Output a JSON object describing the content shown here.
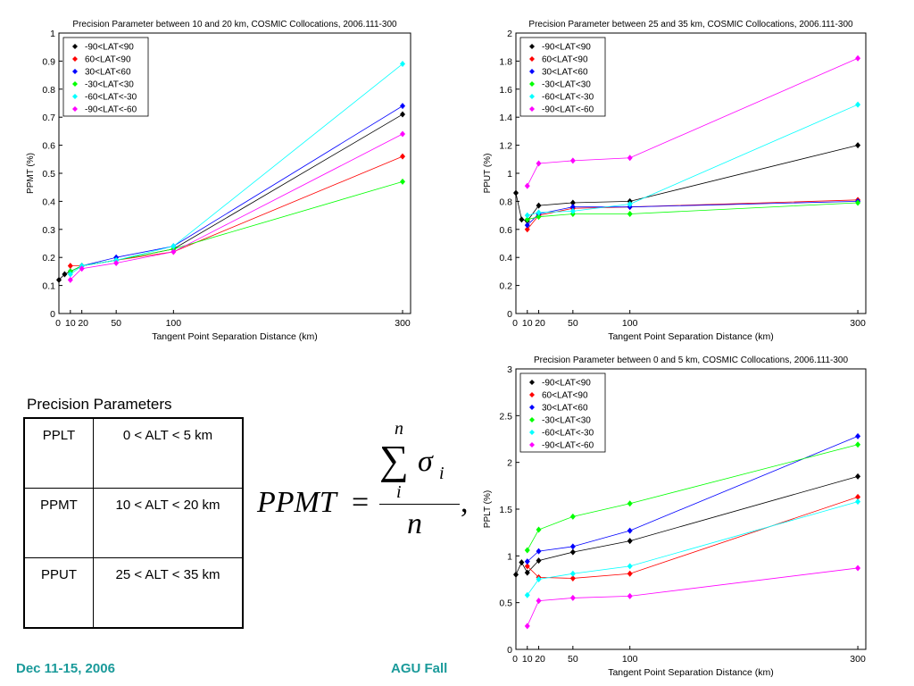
{
  "colors": {
    "-90<LAT<90": "#000000",
    "60<LAT<90": "#ff0000",
    "30<LAT<60": "#0000ff",
    "-30<LAT<30": "#00ff00",
    "-60<LAT<-30": "#00ffff",
    "-90<LAT<-60": "#ff00ff"
  },
  "chart_data": [
    {
      "type": "line",
      "title": "Precision Parameter between 10 and 20 km, COSMIC Collocations, 2006.111-300",
      "xlabel": "Tangent Point Separation Distance (km)",
      "ylabel": "PPMT (%)",
      "xlim": [
        0,
        307
      ],
      "ylim": [
        0,
        1
      ],
      "xticks": [
        0,
        10,
        20,
        50,
        100,
        300
      ],
      "yticks": [
        0,
        0.1,
        0.2,
        0.3,
        0.4,
        0.5,
        0.6,
        0.7,
        0.8,
        0.9,
        1
      ],
      "legend": "top-left",
      "series": [
        {
          "name": "-90<LAT<90",
          "x": [
            0,
            5,
            10,
            20,
            50,
            100,
            300
          ],
          "values": [
            0.12,
            0.14,
            0.15,
            0.17,
            0.19,
            0.23,
            0.71
          ]
        },
        {
          "name": "60<LAT<90",
          "x": [
            10,
            20,
            50,
            100,
            300
          ],
          "values": [
            0.17,
            0.17,
            0.19,
            0.22,
            0.56
          ]
        },
        {
          "name": "30<LAT<60",
          "x": [
            10,
            20,
            50,
            100,
            300
          ],
          "values": [
            0.15,
            0.17,
            0.2,
            0.24,
            0.74
          ]
        },
        {
          "name": "-30<LAT<30",
          "x": [
            10,
            20,
            50,
            100,
            300
          ],
          "values": [
            0.15,
            0.17,
            0.19,
            0.23,
            0.47
          ]
        },
        {
          "name": "-60<LAT<-30",
          "x": [
            10,
            20,
            50,
            100,
            300
          ],
          "values": [
            0.14,
            0.17,
            0.19,
            0.24,
            0.89
          ]
        },
        {
          "name": "-90<LAT<-60",
          "x": [
            10,
            20,
            50,
            100,
            300
          ],
          "values": [
            0.12,
            0.16,
            0.18,
            0.22,
            0.64
          ]
        }
      ]
    },
    {
      "type": "line",
      "title": "Precision Parameter between 25 and 35 km, COSMIC Collocations, 2006.111-300",
      "xlabel": "Tangent Point Separation Distance (km)",
      "ylabel": "PPUT (%)",
      "xlim": [
        0,
        307
      ],
      "ylim": [
        0,
        2
      ],
      "xticks": [
        0,
        10,
        20,
        50,
        100,
        300
      ],
      "yticks": [
        0,
        0.2,
        0.4,
        0.6,
        0.8,
        1,
        1.2,
        1.4,
        1.6,
        1.8,
        2
      ],
      "legend": "top-left",
      "series": [
        {
          "name": "-90<LAT<90",
          "x": [
            0,
            5,
            10,
            20,
            50,
            100,
            300
          ],
          "values": [
            0.86,
            0.67,
            0.66,
            0.77,
            0.79,
            0.8,
            1.2
          ]
        },
        {
          "name": "60<LAT<90",
          "x": [
            10,
            20,
            50,
            100,
            300
          ],
          "values": [
            0.6,
            0.7,
            0.75,
            0.76,
            0.81
          ]
        },
        {
          "name": "30<LAT<60",
          "x": [
            10,
            20,
            50,
            100,
            300
          ],
          "values": [
            0.63,
            0.71,
            0.76,
            0.76,
            0.8
          ]
        },
        {
          "name": "-30<LAT<30",
          "x": [
            10,
            20,
            50,
            100,
            300
          ],
          "values": [
            0.67,
            0.69,
            0.71,
            0.71,
            0.79
          ]
        },
        {
          "name": "-60<LAT<-30",
          "x": [
            10,
            20,
            50,
            100,
            300
          ],
          "values": [
            0.7,
            0.72,
            0.73,
            0.78,
            1.49
          ]
        },
        {
          "name": "-90<LAT<-60",
          "x": [
            10,
            20,
            50,
            100,
            300
          ],
          "values": [
            0.91,
            1.07,
            1.09,
            1.11,
            1.82
          ]
        }
      ]
    },
    {
      "type": "line",
      "title": "Precision Parameter between 0 and 5 km, COSMIC Collocations, 2006.111-300",
      "xlabel": "Tangent Point Separation Distance (km)",
      "ylabel": "PPLT (%)",
      "xlim": [
        0,
        307
      ],
      "ylim": [
        0,
        3
      ],
      "xticks": [
        0,
        10,
        20,
        50,
        100,
        300
      ],
      "yticks": [
        0,
        0.5,
        1,
        1.5,
        2,
        2.5,
        3
      ],
      "legend": "top-left",
      "series": [
        {
          "name": "-90<LAT<90",
          "x": [
            0,
            5,
            10,
            20,
            50,
            100,
            300
          ],
          "values": [
            0.8,
            0.93,
            0.82,
            0.95,
            1.04,
            1.16,
            1.85
          ]
        },
        {
          "name": "60<LAT<90",
          "x": [
            10,
            20,
            50,
            100,
            300
          ],
          "values": [
            0.89,
            0.77,
            0.76,
            0.81,
            1.63
          ]
        },
        {
          "name": "30<LAT<60",
          "x": [
            10,
            20,
            50,
            100,
            300
          ],
          "values": [
            0.94,
            1.05,
            1.1,
            1.27,
            2.28
          ]
        },
        {
          "name": "-30<LAT<30",
          "x": [
            10,
            20,
            50,
            100,
            300
          ],
          "values": [
            1.06,
            1.28,
            1.42,
            1.56,
            2.19
          ]
        },
        {
          "name": "-60<LAT<-30",
          "x": [
            10,
            20,
            50,
            100,
            300
          ],
          "values": [
            0.58,
            0.75,
            0.81,
            0.89,
            1.58
          ]
        },
        {
          "name": "-90<LAT<-60",
          "x": [
            10,
            20,
            50,
            100,
            300
          ],
          "values": [
            0.25,
            0.52,
            0.55,
            0.57,
            0.87
          ]
        }
      ]
    }
  ],
  "table": {
    "title": "Precision Parameters",
    "rows": [
      [
        "PPLT",
        "0 < ALT < 5 km"
      ],
      [
        "PPMT",
        "10 < ALT < 20 km"
      ],
      [
        "PPUT",
        "25 < ALT < 35 km"
      ]
    ]
  },
  "formula": {
    "lhs": "PPMT",
    "eq": "=",
    "sum_top": "n",
    "sum": "∑",
    "sigma": "σ",
    "sub": "i",
    "sum_bottom": "i",
    "den": "n",
    "comma": ","
  },
  "footer": {
    "date": "Dec 11-15, 2006",
    "event": "AGU Fall"
  }
}
